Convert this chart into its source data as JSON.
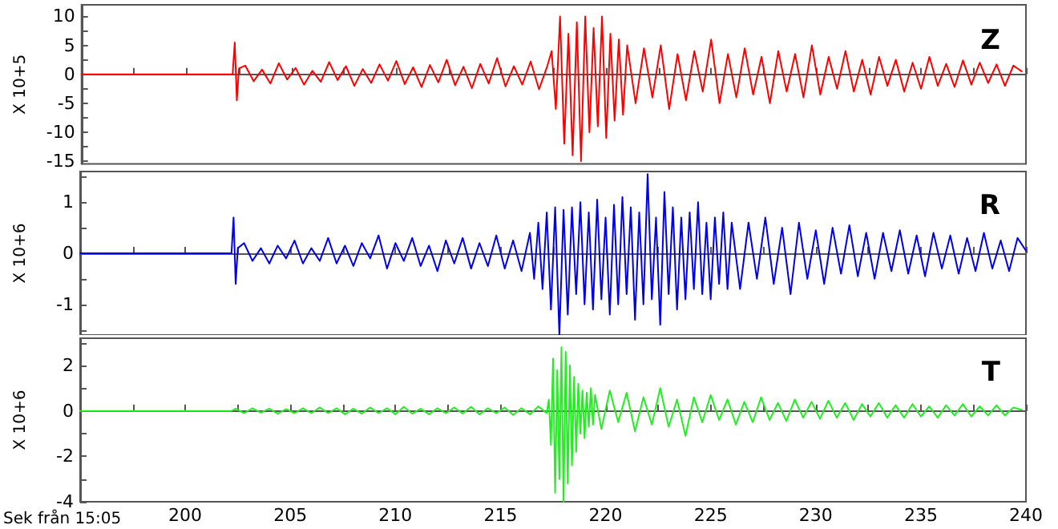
{
  "chart_data": [
    {
      "type": "line",
      "ylabel": "X 10+5",
      "annotations": [
        "Z"
      ],
      "tick_labels": "y",
      "marker": "none",
      "xlim": [
        195,
        240
      ],
      "xticks": [
        {
          "value": 195,
          "label": null
        },
        {
          "value": 197.5,
          "label": null
        },
        {
          "value": 200,
          "label": null
        },
        {
          "value": 202.5,
          "label": null
        },
        {
          "value": 205,
          "label": null
        },
        {
          "value": 207.5,
          "label": null
        },
        {
          "value": 210,
          "label": null
        },
        {
          "value": 212.5,
          "label": null
        },
        {
          "value": 215,
          "label": null
        },
        {
          "value": 217.5,
          "label": null
        },
        {
          "value": 220,
          "label": null
        },
        {
          "value": 222.5,
          "label": null
        },
        {
          "value": 225,
          "label": null
        },
        {
          "value": 227.5,
          "label": null
        },
        {
          "value": 230,
          "label": null
        },
        {
          "value": 232.5,
          "label": null
        },
        {
          "value": 235,
          "label": null
        },
        {
          "value": 237.5,
          "label": null
        },
        {
          "value": 240,
          "label": null
        }
      ],
      "ylim": [
        -15.5,
        12
      ],
      "yticks": [
        -15,
        {
          "value": -12.5,
          "label": null
        },
        -10,
        {
          "value": -7.5,
          "label": null
        },
        -5,
        {
          "value": -2.5,
          "label": null
        },
        0,
        {
          "value": 2.5,
          "label": null
        },
        5,
        {
          "value": 7.5,
          "label": null
        },
        10
      ],
      "series": [
        {
          "color": "#ff0000",
          "x": [
            195,
            202.2,
            202.3,
            202.4,
            202.5,
            202.8,
            203.2,
            203.6,
            204,
            204.4,
            204.8,
            205.2,
            205.6,
            206,
            206.4,
            206.8,
            207.2,
            207.6,
            208,
            208.4,
            208.8,
            209.2,
            209.6,
            210,
            210.4,
            210.8,
            211.2,
            211.6,
            212,
            212.4,
            212.8,
            213.2,
            213.6,
            214,
            214.4,
            214.8,
            215.2,
            215.6,
            216,
            216.4,
            216.8,
            217.2,
            217.4,
            217.6,
            217.8,
            218,
            218.2,
            218.4,
            218.6,
            218.8,
            219,
            219.2,
            219.4,
            219.6,
            219.8,
            220,
            220.2,
            220.4,
            220.6,
            220.8,
            221,
            221.4,
            221.8,
            222.2,
            222.6,
            223,
            223.4,
            223.8,
            224.2,
            224.6,
            225,
            225.4,
            225.8,
            226.2,
            226.6,
            227,
            227.4,
            227.8,
            228.2,
            228.6,
            229,
            229.4,
            229.8,
            230.2,
            230.6,
            231,
            231.4,
            231.8,
            232.2,
            232.6,
            233,
            233.4,
            233.8,
            234.2,
            234.6,
            235,
            235.4,
            235.8,
            236.2,
            236.6,
            237,
            237.4,
            237.8,
            238.2,
            238.6,
            239,
            239.4,
            239.8
          ],
          "values": [
            0,
            0,
            5.5,
            -4.5,
            1,
            1.5,
            -1.2,
            0.8,
            -1.6,
            1.9,
            -0.9,
            1.1,
            -1.8,
            0.6,
            -1.3,
            2.1,
            -1.0,
            1.4,
            -2.0,
            0.9,
            -1.5,
            1.7,
            -1.1,
            2.3,
            -1.7,
            1.2,
            -2.2,
            1.6,
            -1.4,
            2.5,
            -1.9,
            1.3,
            -2.4,
            1.8,
            -1.6,
            2.8,
            -2.1,
            1.4,
            -1.8,
            2.2,
            -2.6,
            1.5,
            4,
            -6,
            10,
            -12,
            7,
            -14,
            9,
            -15,
            10,
            -10,
            8,
            -9,
            10,
            -11,
            7,
            -8,
            6,
            -7,
            5,
            -5,
            4.5,
            -4,
            5,
            -6,
            3.5,
            -4.5,
            4,
            -3,
            6,
            -5,
            3.5,
            -4,
            4.5,
            -3.5,
            3,
            -5,
            4,
            -3,
            3.5,
            -4,
            5,
            -3.5,
            3,
            -2.5,
            4,
            -3,
            2.5,
            -3.5,
            3,
            -2,
            2.5,
            -3,
            2,
            -2.5,
            3,
            -2,
            1.8,
            -2.2,
            2.4,
            -1.8,
            2,
            -1.5,
            1.7,
            -2,
            1.5,
            0.5
          ]
        }
      ]
    },
    {
      "type": "line",
      "ylabel": "X 10+6",
      "annotations": [
        "R"
      ],
      "tick_labels": "y",
      "marker": "none",
      "xlim": [
        195,
        240
      ],
      "xticks": [
        {
          "value": 195,
          "label": null
        },
        {
          "value": 197.5,
          "label": null
        },
        {
          "value": 200,
          "label": null
        },
        {
          "value": 202.5,
          "label": null
        },
        {
          "value": 205,
          "label": null
        },
        {
          "value": 207.5,
          "label": null
        },
        {
          "value": 210,
          "label": null
        },
        {
          "value": 212.5,
          "label": null
        },
        {
          "value": 215,
          "label": null
        },
        {
          "value": 217.5,
          "label": null
        },
        {
          "value": 220,
          "label": null
        },
        {
          "value": 222.5,
          "label": null
        },
        {
          "value": 225,
          "label": null
        },
        {
          "value": 227.5,
          "label": null
        },
        {
          "value": 230,
          "label": null
        },
        {
          "value": 232.5,
          "label": null
        },
        {
          "value": 235,
          "label": null
        },
        {
          "value": 237.5,
          "label": null
        },
        {
          "value": 240,
          "label": null
        }
      ],
      "ylim": [
        -1.6,
        1.6
      ],
      "yticks": [
        {
          "value": -1.5,
          "label": null
        },
        -1,
        {
          "value": -0.5,
          "label": null
        },
        0,
        {
          "value": 0.5,
          "label": null
        },
        1,
        {
          "value": 1.5,
          "label": null
        }
      ],
      "series": [
        {
          "color": "#0000ee",
          "x": [
            195,
            202.2,
            202.3,
            202.4,
            202.5,
            202.8,
            203.2,
            203.6,
            204,
            204.4,
            204.8,
            205.2,
            205.6,
            206,
            206.4,
            206.8,
            207.2,
            207.6,
            208,
            208.4,
            208.8,
            209.2,
            209.6,
            210,
            210.4,
            210.8,
            211.2,
            211.6,
            212,
            212.4,
            212.8,
            213.2,
            213.6,
            214,
            214.4,
            214.8,
            215.2,
            215.6,
            216,
            216.4,
            216.6,
            216.8,
            217,
            217.2,
            217.4,
            217.6,
            217.8,
            218,
            218.2,
            218.4,
            218.6,
            218.8,
            219,
            219.2,
            219.4,
            219.6,
            219.8,
            220,
            220.2,
            220.4,
            220.6,
            220.8,
            221,
            221.2,
            221.4,
            221.6,
            221.8,
            222,
            222.2,
            222.4,
            222.6,
            222.8,
            223,
            223.2,
            223.4,
            223.6,
            223.8,
            224,
            224.2,
            224.4,
            224.6,
            224.8,
            225,
            225.2,
            225.4,
            225.6,
            225.8,
            226,
            226.4,
            226.8,
            227.2,
            227.6,
            228,
            228.4,
            228.8,
            229.2,
            229.6,
            230,
            230.4,
            230.8,
            231.2,
            231.6,
            232,
            232.4,
            232.8,
            233.2,
            233.6,
            234,
            234.4,
            234.8,
            235.2,
            235.6,
            236,
            236.4,
            236.8,
            237.2,
            237.6,
            238,
            238.4,
            238.8,
            239.2,
            239.6,
            240
          ],
          "values": [
            0,
            0,
            0.7,
            -0.6,
            0.1,
            0.2,
            -0.15,
            0.1,
            -0.2,
            0.15,
            -0.1,
            0.25,
            -0.2,
            0.1,
            -0.15,
            0.3,
            -0.2,
            0.15,
            -0.25,
            0.2,
            -0.1,
            0.35,
            -0.3,
            0.2,
            -0.15,
            0.3,
            -0.25,
            0.15,
            -0.35,
            0.25,
            -0.2,
            0.3,
            -0.3,
            0.2,
            -0.25,
            0.35,
            -0.3,
            0.25,
            -0.35,
            0.4,
            -0.5,
            0.6,
            -0.7,
            0.8,
            -1.1,
            0.9,
            -1.6,
            0.85,
            -1.2,
            0.9,
            -0.8,
            1.0,
            -1.0,
            0.8,
            -1.1,
            1.05,
            -0.9,
            0.7,
            -1.2,
            0.95,
            -1.0,
            1.1,
            -0.8,
            0.9,
            -1.3,
            0.8,
            -1.0,
            1.55,
            -0.9,
            0.7,
            -1.4,
            1.2,
            -0.8,
            0.9,
            -1.1,
            0.7,
            -0.9,
            0.8,
            -0.7,
            1.0,
            -0.8,
            0.6,
            -0.9,
            0.7,
            -0.6,
            0.8,
            -0.7,
            0.6,
            -0.7,
            0.6,
            -0.5,
            0.7,
            -0.6,
            0.5,
            -0.8,
            0.6,
            -0.5,
            0.45,
            -0.6,
            0.5,
            -0.4,
            0.55,
            -0.45,
            0.4,
            -0.5,
            0.4,
            -0.35,
            0.45,
            -0.4,
            0.35,
            -0.45,
            0.4,
            -0.3,
            0.35,
            -0.4,
            0.3,
            -0.35,
            0.4,
            -0.3,
            0.25,
            -0.35,
            0.3,
            0.05
          ]
        }
      ]
    },
    {
      "type": "line",
      "xlabel": "Sek från 15:05",
      "ylabel": "X 10+6",
      "annotations": [
        "T"
      ],
      "marker": "none",
      "xlim": [
        195,
        240
      ],
      "xticks": [
        {
          "value": 195,
          "label": null
        },
        {
          "value": 197.5,
          "label": null
        },
        200,
        {
          "value": 202.5,
          "label": null
        },
        205,
        {
          "value": 207.5,
          "label": null
        },
        210,
        {
          "value": 212.5,
          "label": null
        },
        215,
        {
          "value": 217.5,
          "label": null
        },
        220,
        {
          "value": 222.5,
          "label": null
        },
        225,
        {
          "value": 227.5,
          "label": null
        },
        230,
        {
          "value": 232.5,
          "label": null
        },
        235,
        {
          "value": 237.5,
          "label": null
        },
        240
      ],
      "ylim": [
        -4,
        3.2
      ],
      "yticks": [
        -4,
        {
          "value": -3,
          "label": null
        },
        -2,
        {
          "value": -1,
          "label": null
        },
        0,
        {
          "value": 1,
          "label": null
        },
        2,
        {
          "value": 3,
          "label": null
        }
      ],
      "series": [
        {
          "color": "#22ee22",
          "x": [
            195,
            202.2,
            202.4,
            202.8,
            203.2,
            203.6,
            204,
            204.4,
            204.8,
            205.2,
            205.6,
            206,
            206.4,
            206.8,
            207.2,
            207.6,
            208,
            208.4,
            208.8,
            209.2,
            209.6,
            210,
            210.4,
            210.8,
            211.2,
            211.6,
            212,
            212.4,
            212.8,
            213.2,
            213.6,
            214,
            214.4,
            214.8,
            215.2,
            215.6,
            216,
            216.4,
            216.8,
            217.2,
            217.3,
            217.4,
            217.5,
            217.6,
            217.7,
            217.8,
            217.9,
            218,
            218.1,
            218.2,
            218.3,
            218.4,
            218.5,
            218.6,
            218.7,
            218.8,
            218.9,
            219,
            219.1,
            219.2,
            219.3,
            219.4,
            219.5,
            219.8,
            220.2,
            220.6,
            221,
            221.4,
            221.8,
            222.2,
            222.6,
            223,
            223.4,
            223.8,
            224.2,
            224.6,
            225,
            225.4,
            225.8,
            226.2,
            226.6,
            227,
            227.4,
            227.8,
            228.2,
            228.6,
            229,
            229.4,
            229.8,
            230.2,
            230.6,
            231,
            231.4,
            231.8,
            232.2,
            232.6,
            233,
            233.4,
            233.8,
            234.2,
            234.6,
            235,
            235.4,
            235.8,
            236.2,
            236.6,
            237,
            237.4,
            237.8,
            238.2,
            238.6,
            239,
            239.4,
            239.8
          ],
          "values": [
            0,
            0,
            0.1,
            -0.1,
            0.12,
            -0.08,
            0.1,
            -0.12,
            0.08,
            -0.1,
            0.12,
            -0.1,
            0.15,
            -0.1,
            0.12,
            -0.15,
            0.1,
            -0.12,
            0.15,
            -0.1,
            0.12,
            -0.15,
            0.18,
            -0.12,
            0.1,
            -0.15,
            0.12,
            -0.1,
            0.15,
            -0.12,
            0.18,
            -0.15,
            0.12,
            -0.1,
            0.15,
            -0.18,
            0.12,
            -0.15,
            0.2,
            -0.1,
            0.5,
            -1.5,
            2.3,
            -3.6,
            1.8,
            -3.0,
            2.8,
            -4.0,
            2.6,
            -3.2,
            2.0,
            -2.4,
            1.5,
            -1.8,
            1.2,
            -1.0,
            0.9,
            -1.2,
            0.8,
            -0.7,
            1.0,
            -0.6,
            0.7,
            -0.8,
            0.9,
            -0.5,
            0.8,
            -0.9,
            0.6,
            -0.6,
            1.0,
            -0.7,
            0.5,
            -1.1,
            0.6,
            -0.5,
            0.7,
            -0.4,
            0.5,
            -0.6,
            0.4,
            -0.5,
            0.6,
            -0.4,
            0.35,
            -0.45,
            0.5,
            -0.3,
            0.4,
            -0.35,
            0.45,
            -0.3,
            0.35,
            -0.4,
            0.3,
            -0.25,
            0.35,
            -0.3,
            0.25,
            -0.3,
            0.3,
            -0.25,
            0.2,
            -0.3,
            0.25,
            -0.2,
            0.3,
            -0.25,
            0.2,
            -0.2,
            0.25,
            -0.2,
            0.15,
            0.05
          ]
        }
      ]
    }
  ]
}
